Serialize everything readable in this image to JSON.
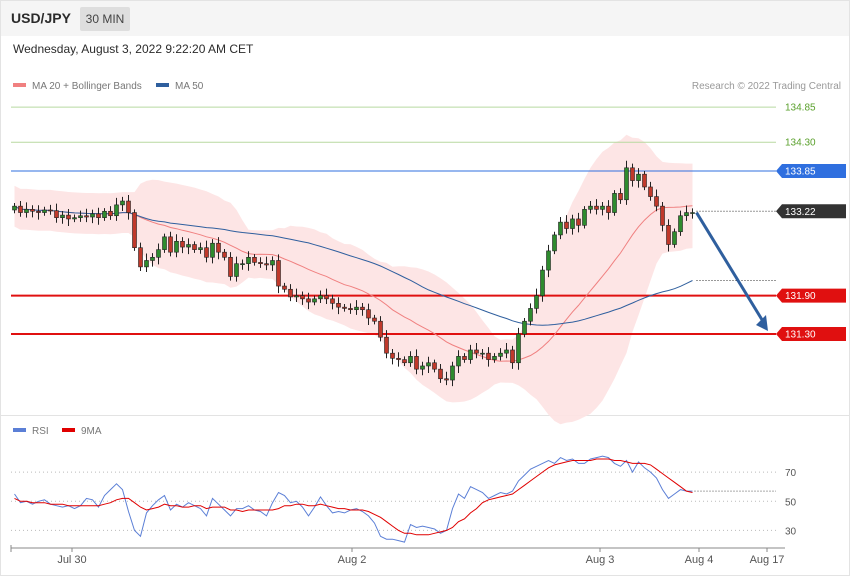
{
  "header": {
    "pair": "USD/JPY",
    "timeframe": "30 MIN",
    "datetime": "Wednesday, August 3, 2022 9:22:20 AM CET"
  },
  "legend": {
    "main": [
      {
        "label": "MA 20 + Bollinger Bands",
        "color": "#f08080"
      },
      {
        "label": "MA 50",
        "color": "#2f5f9e"
      }
    ],
    "rsi": [
      {
        "label": "RSI",
        "color": "#5b7fd6"
      },
      {
        "label": "9MA",
        "color": "#e00000"
      }
    ],
    "credit": "Research © 2022 Trading Central"
  },
  "colors": {
    "bull": "#2e8b2e",
    "bear": "#c0392b",
    "band": "#fde2e2",
    "blue_level": "#2f6fdf",
    "red_level": "#e01010",
    "green_level": "#5aa02c",
    "arrow": "#2f5f9e",
    "current": "#333333"
  },
  "chart_data": [
    {
      "type": "candlestick",
      "title": "USD/JPY 30 MIN",
      "ylim": [
        130.67,
        135.15
      ],
      "x_labels": [
        "Jul 30",
        "Aug 2",
        "Aug 3",
        "Aug 4",
        "Aug 17"
      ],
      "levels": [
        {
          "label": "134.85",
          "value": 134.85,
          "kind": "target"
        },
        {
          "label": "134.30",
          "value": 134.3,
          "kind": "target"
        },
        {
          "label": "133.85",
          "value": 133.85,
          "kind": "pivot"
        },
        {
          "label": "133.22",
          "value": 133.22,
          "kind": "current"
        },
        {
          "label": "131.90",
          "value": 131.9,
          "kind": "support"
        },
        {
          "label": "131.30",
          "value": 131.3,
          "kind": "support"
        }
      ],
      "close": [
        133.3,
        133.2,
        133.25,
        133.22,
        133.2,
        133.24,
        133.23,
        133.12,
        133.16,
        133.1,
        133.12,
        133.15,
        133.13,
        133.18,
        133.12,
        133.22,
        133.15,
        133.32,
        133.38,
        133.2,
        132.65,
        132.35,
        132.45,
        132.5,
        132.62,
        132.82,
        132.58,
        132.75,
        132.66,
        132.7,
        132.62,
        132.65,
        132.5,
        132.72,
        132.58,
        132.5,
        132.2,
        132.4,
        132.4,
        132.5,
        132.42,
        132.4,
        132.38,
        132.45,
        132.05,
        132.0,
        131.88,
        131.9,
        131.85,
        131.8,
        131.85,
        131.9,
        131.85,
        131.78,
        131.72,
        131.7,
        131.68,
        131.72,
        131.68,
        131.55,
        131.5,
        131.25,
        131.0,
        130.92,
        130.9,
        130.85,
        130.95,
        130.75,
        130.8,
        130.85,
        130.75,
        130.6,
        130.58,
        130.8,
        130.95,
        130.9,
        131.05,
        131.0,
        131.0,
        130.9,
        130.95,
        131.0,
        131.05,
        130.85,
        131.3,
        131.5,
        131.7,
        131.9,
        132.3,
        132.6,
        132.85,
        133.05,
        132.95,
        133.1,
        133.0,
        133.25,
        133.3,
        133.25,
        133.3,
        133.2,
        133.5,
        133.4,
        133.9,
        133.7,
        133.8,
        133.6,
        133.45,
        133.3,
        133.0,
        132.7,
        132.9,
        133.15,
        133.2,
        133.2
      ],
      "rsi": {
        "levels": [
          70,
          50,
          30
        ],
        "ylim": [
          20,
          90
        ],
        "rsi": [
          55,
          49,
          50,
          48,
          50,
          51,
          48,
          47,
          46,
          47,
          45,
          47,
          52,
          51,
          46,
          54,
          58,
          62,
          58,
          43,
          30,
          26,
          42,
          47,
          51,
          54,
          44,
          48,
          46,
          49,
          47,
          45,
          40,
          52,
          48,
          44,
          40,
          45,
          45,
          47,
          44,
          43,
          40,
          49,
          56,
          54,
          49,
          50,
          46,
          40,
          46,
          53,
          47,
          42,
          43,
          42,
          44,
          45,
          43,
          40,
          35,
          26,
          24,
          24,
          23,
          22,
          34,
          32,
          33,
          32,
          31,
          28,
          30,
          45,
          55,
          52,
          60,
          58,
          56,
          52,
          54,
          56,
          55,
          57,
          64,
          68,
          72,
          74,
          76,
          78,
          76,
          80,
          78,
          79,
          76,
          76,
          79,
          80,
          81,
          80,
          76,
          74,
          78,
          70,
          77,
          73,
          70,
          66,
          58,
          52,
          55,
          58,
          57,
          57
        ],
        "ma9": [
          52,
          50,
          50,
          49,
          49,
          49,
          48,
          48,
          48,
          47,
          47,
          47,
          47,
          47,
          47,
          48,
          49,
          51,
          52,
          52,
          49,
          46,
          44,
          45,
          46,
          48,
          47,
          47,
          46,
          46,
          47,
          47,
          45,
          46,
          46,
          46,
          44,
          44,
          43,
          44,
          44,
          44,
          44,
          44,
          45,
          47,
          47,
          48,
          48,
          47,
          47,
          48,
          47,
          46,
          45,
          45,
          44,
          44,
          44,
          43,
          41,
          39,
          36,
          33,
          30,
          28,
          28,
          27,
          27,
          27,
          28,
          29,
          30,
          32,
          36,
          38,
          42,
          45,
          49,
          51,
          52,
          53,
          54,
          55,
          58,
          61,
          64,
          67,
          70,
          73,
          75,
          76,
          77,
          78,
          78,
          78,
          78,
          79,
          79,
          79,
          78,
          78,
          77,
          76,
          76,
          76,
          75,
          72,
          69,
          66,
          63,
          60,
          57,
          56
        ]
      }
    }
  ]
}
